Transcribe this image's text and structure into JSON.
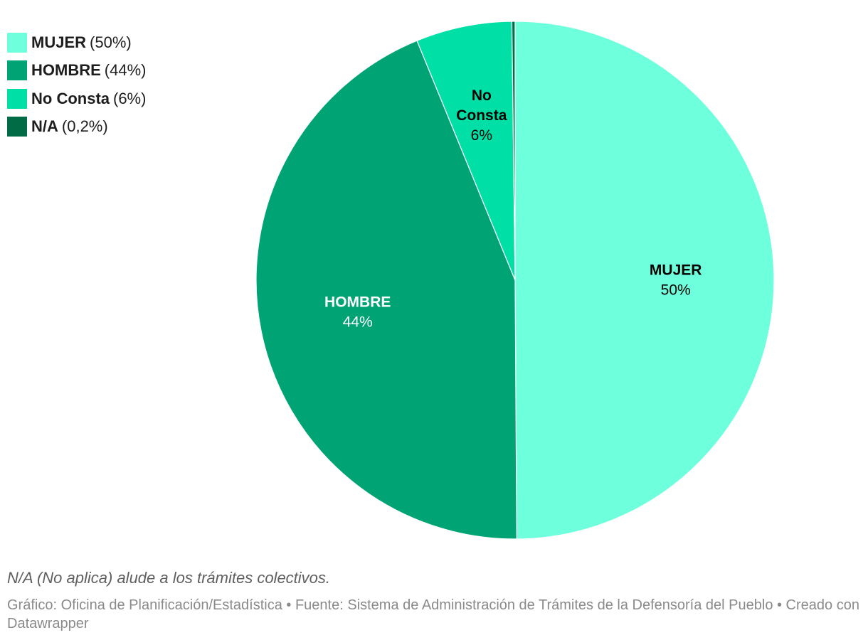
{
  "chart_data": {
    "type": "pie",
    "categories": [
      "MUJER",
      "HOMBRE",
      "No Consta",
      "N/A"
    ],
    "values": [
      50,
      44,
      6,
      0.2
    ],
    "percent_labels": [
      "50%",
      "44%",
      "6%",
      "0,2%"
    ],
    "legend_pct": [
      "(50%)",
      "(44%)",
      "(6%)",
      "(0,2%)"
    ],
    "colors": [
      "#6effdc",
      "#00a474",
      "#00dfa5",
      "#006b45"
    ],
    "label_colors": [
      "#000000",
      "#ffffff",
      "#000000",
      "#000000"
    ],
    "legend_position": "top-left"
  },
  "note": "N/A (No aplica) alude a los trámites colectivos.",
  "credits": "Gráfico: Oficina de Planificación/Estadística • Fuente: Sistema de Administración de Trámites de la Defensoría del Pueblo • Creado con Datawrapper"
}
